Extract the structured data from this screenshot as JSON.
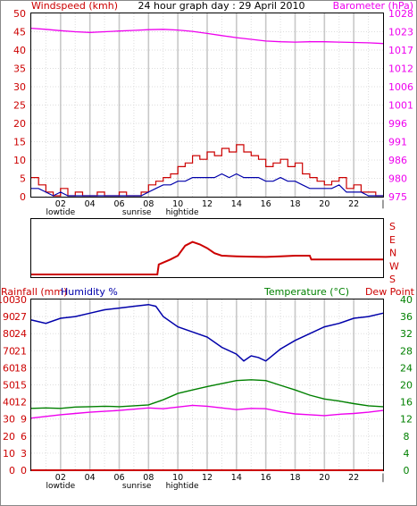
{
  "title": "24 hour graph day : 29 April 2010",
  "colors": {
    "wind": "#cc0000",
    "baro": "#ee00ee",
    "blue": "#0000aa",
    "green": "#008000",
    "magenta": "#ee00ee",
    "red": "#cc0000",
    "grid": "#c8c8c8",
    "dotted": "#dddddd"
  },
  "chart_data": [
    {
      "type": "line",
      "name": "wind-barometer",
      "left_label": "Windspeed (kmh)",
      "right_label": "Barometer (hPa)",
      "left_ticks": [
        "50",
        "45",
        "40",
        "35",
        "30",
        "25",
        "20",
        "15",
        "10",
        "5",
        "0"
      ],
      "right_ticks": [
        "1028",
        "1023",
        "1017",
        "1012",
        "1006",
        "1001",
        "996",
        "991",
        "986",
        "980",
        "975"
      ],
      "ylim_left": [
        0,
        50
      ],
      "ylim_right": [
        975,
        1028
      ],
      "x_ticks": [
        "02",
        "04",
        "06",
        "08",
        "10",
        "12",
        "14",
        "16",
        "18",
        "20",
        "22",
        "|"
      ],
      "x_sublabels": [
        "lowtide",
        "sunrise",
        "hightide"
      ],
      "xlim": [
        0,
        24
      ],
      "series": [
        {
          "key": "wind_gust",
          "x": [
            0,
            0.5,
            1,
            1.5,
            2,
            2.5,
            3,
            3.5,
            4,
            4.5,
            5,
            5.5,
            6,
            6.5,
            7,
            7.5,
            8,
            8.5,
            9,
            9.5,
            10,
            10.5,
            11,
            11.5,
            12,
            12.5,
            13,
            13.5,
            14,
            14.5,
            15,
            15.5,
            16,
            16.5,
            17,
            17.5,
            18,
            18.5,
            19,
            19.5,
            20,
            20.5,
            21,
            21.5,
            22,
            22.5,
            23,
            23.5,
            24
          ],
          "values": [
            5,
            3,
            1,
            0,
            2,
            0,
            1,
            0,
            0,
            1,
            0,
            0,
            1,
            0,
            0,
            1,
            3,
            4,
            5,
            6,
            8,
            9,
            11,
            10,
            12,
            11,
            13,
            12,
            14,
            12,
            11,
            10,
            8,
            9,
            10,
            8,
            9,
            6,
            5,
            4,
            3,
            4,
            5,
            2,
            3,
            1,
            1,
            0,
            0
          ]
        },
        {
          "key": "wind_avg",
          "x": [
            0,
            0.5,
            1,
            1.5,
            2,
            2.5,
            3,
            3.5,
            4,
            4.5,
            5,
            5.5,
            6,
            6.5,
            7,
            7.5,
            8,
            8.5,
            9,
            9.5,
            10,
            10.5,
            11,
            11.5,
            12,
            12.5,
            13,
            13.5,
            14,
            14.5,
            15,
            15.5,
            16,
            16.5,
            17,
            17.5,
            18,
            18.5,
            19,
            19.5,
            20,
            20.5,
            21,
            21.5,
            22,
            22.5,
            23,
            23.5,
            24
          ],
          "values": [
            2,
            2,
            1,
            0,
            1,
            0,
            0,
            0,
            0,
            0,
            0,
            0,
            0,
            0,
            0,
            0,
            1,
            2,
            3,
            3,
            4,
            4,
            5,
            5,
            5,
            5,
            6,
            5,
            6,
            5,
            5,
            5,
            4,
            4,
            5,
            4,
            4,
            3,
            2,
            2,
            2,
            2,
            3,
            1,
            1,
            1,
            0,
            0,
            0
          ]
        },
        {
          "key": "barometer",
          "x": [
            0,
            1,
            2,
            3,
            4,
            5,
            6,
            7,
            8,
            9,
            10,
            11,
            12,
            13,
            14,
            15,
            16,
            17,
            18,
            19,
            20,
            21,
            22,
            23,
            24
          ],
          "values": [
            1023.7,
            1023.4,
            1023.0,
            1022.7,
            1022.5,
            1022.7,
            1022.9,
            1023.1,
            1023.3,
            1023.4,
            1023.2,
            1022.8,
            1022.2,
            1021.6,
            1021.0,
            1020.5,
            1020.0,
            1019.8,
            1019.7,
            1019.8,
            1019.8,
            1019.7,
            1019.6,
            1019.5,
            1019.3
          ]
        }
      ]
    },
    {
      "type": "line",
      "name": "wind-direction",
      "right_ticks": [
        "S",
        "E",
        "N",
        "W",
        "S"
      ],
      "xlim": [
        0,
        24
      ],
      "series": [
        {
          "key": "direction",
          "x": [
            0,
            4,
            8,
            8.6,
            8.7,
            9.5,
            10,
            10.5,
            11,
            11.5,
            12,
            12.5,
            13,
            14,
            15,
            16,
            17,
            18,
            19,
            19.1,
            24
          ],
          "values": [
            0,
            0,
            0,
            0,
            0.8,
            1.2,
            1.5,
            2.3,
            2.6,
            2.4,
            2.1,
            1.7,
            1.5,
            1.45,
            1.42,
            1.4,
            1.45,
            1.5,
            1.5,
            1.2,
            1.2
          ]
        }
      ]
    },
    {
      "type": "line",
      "name": "rain-humidity-temperature",
      "left_label_rain": "Rainfall (mm)",
      "left_label_hum": "Humidity %",
      "right_label_temp": "Temperature (°C)",
      "right_label_dew": "Dew Point",
      "rain_ticks": [
        "100",
        "90",
        "80",
        "70",
        "60",
        "50",
        "40",
        "30",
        "20",
        "10",
        "0"
      ],
      "hum_ticks": [
        "30",
        "27",
        "24",
        "21",
        "18",
        "15",
        "12",
        "9",
        "6",
        "3",
        "0"
      ],
      "temp_ticks": [
        "40",
        "36",
        "32",
        "28",
        "24",
        "20",
        "16",
        "12",
        "8",
        "4",
        "0"
      ],
      "x_ticks": [
        "02",
        "04",
        "06",
        "08",
        "10",
        "12",
        "14",
        "16",
        "18",
        "20",
        "22",
        "|"
      ],
      "x_sublabels": [
        "lowtide",
        "sunrise",
        "hightide"
      ],
      "xlim": [
        0,
        24
      ],
      "series": [
        {
          "key": "humidity",
          "x": [
            0,
            1,
            2,
            3,
            4,
            5,
            6,
            7,
            8,
            8.5,
            9,
            10,
            11,
            12,
            13,
            14,
            14.5,
            15,
            15.5,
            16,
            17,
            18,
            19,
            20,
            21,
            22,
            23,
            24
          ],
          "values": [
            88,
            86,
            89,
            90,
            92,
            94,
            95,
            96,
            97,
            96,
            90,
            84,
            81,
            78,
            72,
            68,
            64,
            67,
            66,
            64,
            71,
            76,
            80,
            84,
            86,
            89,
            90,
            92
          ]
        },
        {
          "key": "temperature",
          "x": [
            0,
            1,
            2,
            3,
            4,
            5,
            6,
            7,
            8,
            9,
            10,
            11,
            12,
            13,
            14,
            15,
            16,
            17,
            18,
            19,
            20,
            21,
            22,
            23,
            24
          ],
          "values": [
            14.5,
            14.6,
            14.5,
            14.8,
            14.9,
            15.0,
            14.9,
            15.1,
            15.3,
            16.5,
            18.0,
            18.8,
            19.6,
            20.3,
            21.0,
            21.2,
            21.0,
            19.9,
            18.8,
            17.6,
            16.7,
            16.2,
            15.6,
            15.1,
            14.9
          ]
        },
        {
          "key": "dewpoint",
          "x": [
            0,
            1,
            2,
            3,
            4,
            5,
            6,
            7,
            8,
            9,
            10,
            11,
            12,
            13,
            14,
            15,
            16,
            17,
            18,
            19,
            20,
            21,
            22,
            23,
            24
          ],
          "values": [
            12.2,
            12.6,
            13.0,
            13.3,
            13.6,
            13.8,
            14.0,
            14.3,
            14.6,
            14.4,
            14.8,
            15.2,
            15.0,
            14.6,
            14.2,
            14.5,
            14.4,
            13.7,
            13.2,
            13.0,
            12.8,
            13.1,
            13.3,
            13.6,
            14.0
          ]
        },
        {
          "key": "rainfall",
          "x": [
            0,
            24
          ],
          "values": [
            0,
            0
          ]
        }
      ]
    }
  ]
}
